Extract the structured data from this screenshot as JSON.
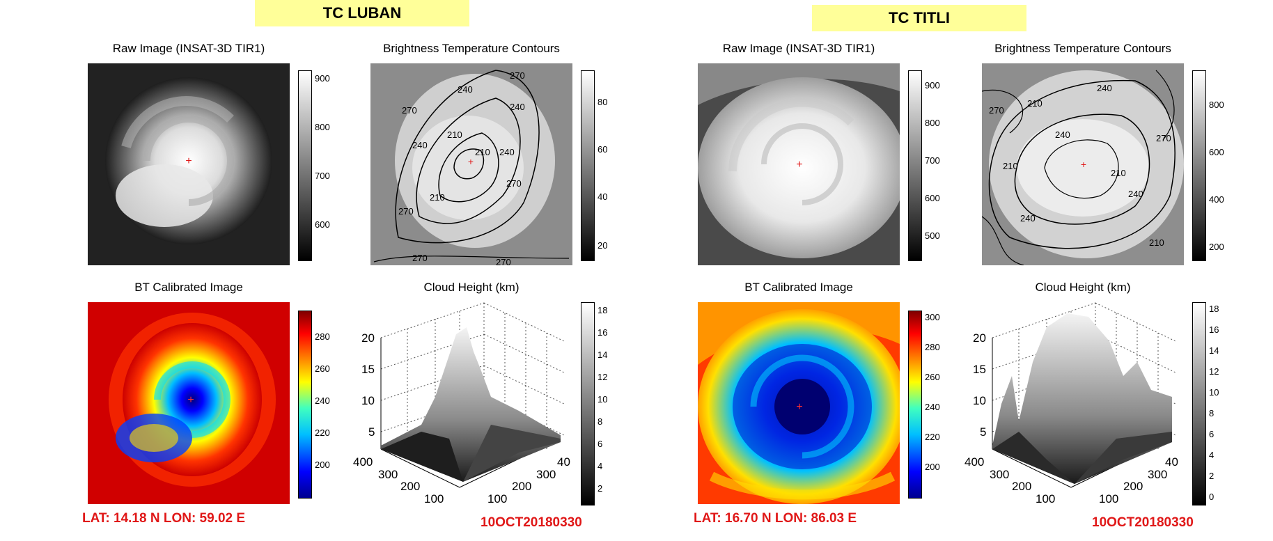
{
  "storms": [
    {
      "title": "TC LUBAN",
      "panels": {
        "raw": "Raw Image (INSAT-3D TIR1)",
        "contour": "Brightness Temperature Contours",
        "bt": "BT Calibrated Image",
        "height": "Cloud Height (km)"
      },
      "raw_colorbar_ticks": [
        "900",
        "800",
        "700",
        "600"
      ],
      "contour_colorbar_ticks": [
        "80",
        "60",
        "40",
        "20"
      ],
      "contour_labels": [
        "270",
        "240",
        "210",
        "270",
        "240",
        "210",
        "240",
        "270",
        "240",
        "210",
        "270",
        "270",
        "270"
      ],
      "bt_colorbar_ticks": [
        "280",
        "260",
        "240",
        "220",
        "200"
      ],
      "height_colorbar_ticks": [
        "18",
        "16",
        "14",
        "12",
        "10",
        "8",
        "6",
        "4",
        "2"
      ],
      "z_ticks": [
        "20",
        "15",
        "10",
        "5"
      ],
      "y_ticks": [
        "400",
        "300",
        "200",
        "100"
      ],
      "x_ticks": [
        "100",
        "200",
        "300",
        "40"
      ],
      "latlon": "LAT: 14.18 N  LON: 59.02 E",
      "timestamp": "10OCT20180330"
    },
    {
      "title": "TC TITLI",
      "panels": {
        "raw": "Raw Image (INSAT-3D TIR1)",
        "contour": "Brightness Temperature Contours",
        "bt": "BT Calibrated Image",
        "height": "Cloud Height (km)"
      },
      "raw_colorbar_ticks": [
        "900",
        "800",
        "700",
        "600",
        "500"
      ],
      "contour_colorbar_ticks": [
        "800",
        "600",
        "400",
        "200"
      ],
      "contour_labels": [
        "240",
        "210",
        "270",
        "210",
        "240",
        "270",
        "210",
        "240",
        "240",
        "210"
      ],
      "bt_colorbar_ticks": [
        "300",
        "280",
        "260",
        "240",
        "220",
        "200"
      ],
      "height_colorbar_ticks": [
        "18",
        "16",
        "14",
        "12",
        "10",
        "8",
        "6",
        "4",
        "2",
        "0"
      ],
      "z_ticks": [
        "20",
        "15",
        "10",
        "5"
      ],
      "y_ticks": [
        "400",
        "300",
        "200",
        "100"
      ],
      "x_ticks": [
        "100",
        "200",
        "300",
        "40"
      ],
      "latlon": "LAT: 16.70 N  LON: 86.03 E",
      "timestamp": "10OCT20180330"
    }
  ]
}
